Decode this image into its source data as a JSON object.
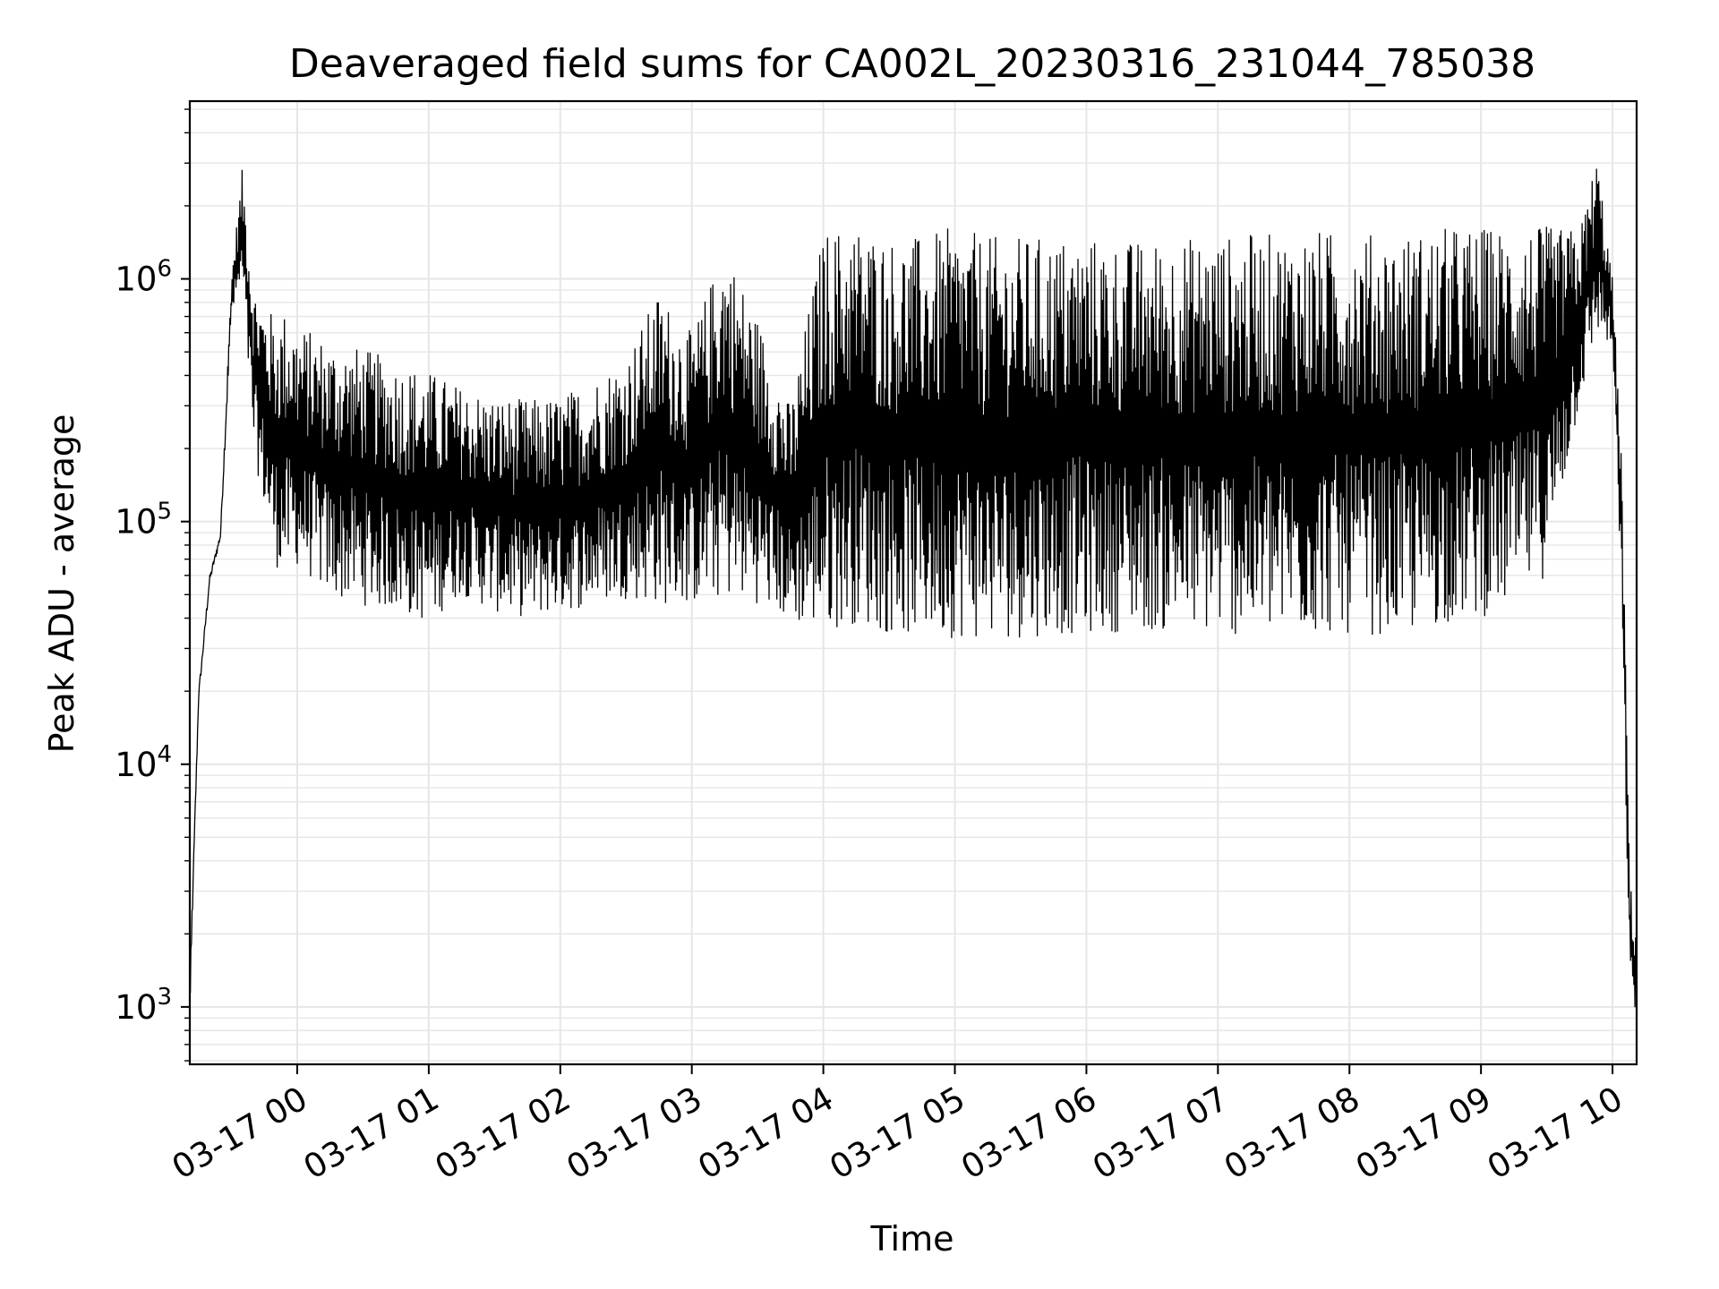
{
  "chart_data": {
    "type": "line",
    "title": "Deaveraged field sums for CA002L_20230316_231044_785038",
    "xlabel": "Time",
    "ylabel": "Peak ADU - average",
    "yscale": "log",
    "ylim": [
      580,
      5400000
    ],
    "xlim": [
      "2023-03-16 23:11",
      "2023-03-17 10:11"
    ],
    "grid": true,
    "line_color": "#000000",
    "grid_color": "#e6e6e6",
    "x_tick_labels": [
      "03-17 00",
      "03-17 01",
      "03-17 02",
      "03-17 03",
      "03-17 04",
      "03-17 05",
      "03-17 06",
      "03-17 07",
      "03-17 08",
      "03-17 09",
      "03-17 10"
    ],
    "y_ticks": [
      {
        "base": "10",
        "exp": "3"
      },
      {
        "base": "10",
        "exp": "4"
      },
      {
        "base": "10",
        "exp": "5"
      },
      {
        "base": "10",
        "exp": "6"
      }
    ],
    "series": [
      {
        "style": "dense fluctuating trace (approximate upper and lower envelope)",
        "times": [
          "2023-03-16 23:11",
          "2023-03-16 23:15",
          "2023-03-16 23:20",
          "2023-03-16 23:25",
          "2023-03-16 23:30",
          "2023-03-16 23:35",
          "2023-03-16 23:40",
          "2023-03-16 23:45",
          "2023-03-16 23:50",
          "2023-03-16 23:55",
          "2023-03-17 00:00",
          "2023-03-17 00:15",
          "2023-03-17 00:30",
          "2023-03-17 00:45",
          "2023-03-17 01:00",
          "2023-03-17 01:15",
          "2023-03-17 01:30",
          "2023-03-17 01:45",
          "2023-03-17 02:00",
          "2023-03-17 02:15",
          "2023-03-17 02:30",
          "2023-03-17 02:45",
          "2023-03-17 03:00",
          "2023-03-17 03:15",
          "2023-03-17 03:30",
          "2023-03-17 03:45",
          "2023-03-17 04:00",
          "2023-03-17 04:15",
          "2023-03-17 04:30",
          "2023-03-17 04:45",
          "2023-03-17 05:00",
          "2023-03-17 05:15",
          "2023-03-17 05:30",
          "2023-03-17 05:45",
          "2023-03-17 06:00",
          "2023-03-17 06:15",
          "2023-03-17 06:30",
          "2023-03-17 06:45",
          "2023-03-17 07:00",
          "2023-03-17 07:15",
          "2023-03-17 07:30",
          "2023-03-17 07:45",
          "2023-03-17 08:00",
          "2023-03-17 08:15",
          "2023-03-17 08:30",
          "2023-03-17 08:45",
          "2023-03-17 09:00",
          "2023-03-17 09:15",
          "2023-03-17 09:30",
          "2023-03-17 09:45",
          "2023-03-17 09:53",
          "2023-03-17 10:00",
          "2023-03-17 10:04",
          "2023-03-17 10:08",
          "2023-03-17 10:11"
        ],
        "upper": [
          1300,
          20000,
          60000,
          90000,
          1050000,
          2900000,
          950000,
          800000,
          700000,
          750000,
          650000,
          560000,
          520000,
          460000,
          420000,
          360000,
          330000,
          320000,
          330000,
          390000,
          480000,
          900000,
          600000,
          1400000,
          700000,
          300000,
          1600000,
          1700000,
          1500000,
          1500000,
          1650000,
          1500000,
          1500000,
          1500000,
          1500000,
          1450000,
          1450000,
          1500000,
          1500000,
          1550000,
          1550000,
          1600000,
          1550000,
          1550000,
          1550000,
          1650000,
          1650000,
          1650000,
          1650000,
          1600000,
          3300000,
          1000000,
          200000,
          3300,
          2000
        ],
        "lower": [
          900,
          18000,
          55000,
          85000,
          700000,
          900000,
          200000,
          110000,
          65000,
          60000,
          65000,
          48000,
          45000,
          42000,
          38000,
          50000,
          42000,
          40000,
          42000,
          45000,
          48000,
          45000,
          45000,
          48000,
          46000,
          38000,
          35000,
          38000,
          34000,
          33000,
          33000,
          32000,
          33000,
          34000,
          34000,
          35000,
          35000,
          34000,
          34000,
          33000,
          33000,
          34000,
          34000,
          34000,
          34000,
          38000,
          40000,
          45000,
          60000,
          300000,
          600000,
          500000,
          50000,
          1100,
          900
        ]
      }
    ]
  }
}
